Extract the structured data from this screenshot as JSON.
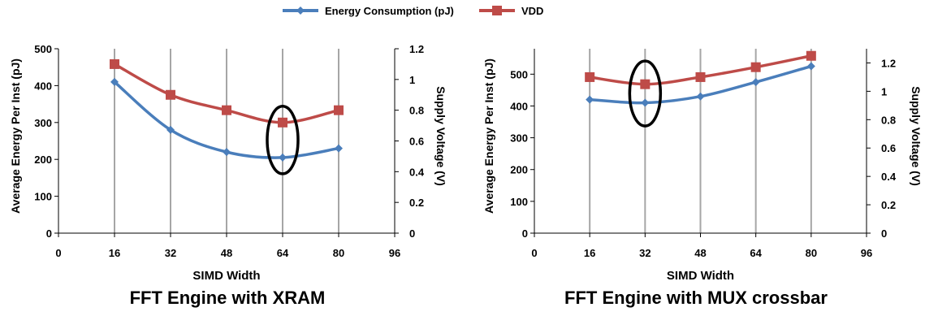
{
  "legend": [
    {
      "label": "Energy Consumption (pJ)",
      "color": "#4a7ebb",
      "marker": "diamond"
    },
    {
      "label": "VDD",
      "color": "#be4b48",
      "marker": "square"
    }
  ],
  "captions": [
    "FFT Engine with XRAM",
    "FFT Engine with MUX crossbar"
  ],
  "chart_data": [
    {
      "type": "line",
      "title": "FFT Engine with XRAM",
      "xlabel": "SIMD Width",
      "ylabel": "Average Energy Per Inst (pJ)",
      "y2label": "Supply Voltage (V)",
      "xlim": [
        0,
        96
      ],
      "xticks": [
        0,
        16,
        32,
        48,
        64,
        80,
        96
      ],
      "ylim": [
        0,
        500
      ],
      "yticks": [
        0,
        100,
        200,
        300,
        400,
        500
      ],
      "y2lim": [
        0,
        1.2
      ],
      "y2ticks": [
        0,
        0.2,
        0.4,
        0.6,
        0.8,
        1,
        1.2
      ],
      "grid": "vertical",
      "legend": "top-center",
      "highlight": {
        "x": 64,
        "shape": "ellipse"
      },
      "series": [
        {
          "name": "Energy Consumption (pJ)",
          "axis": "left",
          "color": "#4a7ebb",
          "marker": "diamond",
          "x": [
            16,
            32,
            48,
            64,
            80
          ],
          "values": [
            410,
            280,
            220,
            205,
            230
          ]
        },
        {
          "name": "VDD",
          "axis": "right",
          "color": "#be4b48",
          "marker": "square",
          "x": [
            16,
            32,
            48,
            64,
            80
          ],
          "values": [
            1.1,
            0.9,
            0.8,
            0.72,
            0.8
          ]
        }
      ]
    },
    {
      "type": "line",
      "title": "FFT Engine with MUX crossbar",
      "xlabel": "SIMD Width",
      "ylabel": "Average Energy Per Inst (pJ)",
      "y2label": "Supply Voltage (V)",
      "xlim": [
        0,
        96
      ],
      "xticks": [
        0,
        16,
        32,
        48,
        64,
        80,
        96
      ],
      "ylim": [
        0,
        580
      ],
      "yticks": [
        0,
        100,
        200,
        300,
        400,
        500
      ],
      "y2lim": [
        0,
        1.3
      ],
      "y2ticks": [
        0,
        0.2,
        0.4,
        0.6,
        0.8,
        1,
        1.2
      ],
      "grid": "vertical",
      "legend": "top-center",
      "highlight": {
        "x": 32,
        "shape": "ellipse"
      },
      "series": [
        {
          "name": "Energy Consumption (pJ)",
          "axis": "left",
          "color": "#4a7ebb",
          "marker": "diamond",
          "x": [
            16,
            32,
            48,
            64,
            80
          ],
          "values": [
            420,
            410,
            430,
            475,
            525
          ]
        },
        {
          "name": "VDD",
          "axis": "right",
          "color": "#be4b48",
          "marker": "square",
          "x": [
            16,
            32,
            48,
            64,
            80
          ],
          "values": [
            1.1,
            1.05,
            1.1,
            1.17,
            1.25
          ]
        }
      ]
    }
  ]
}
